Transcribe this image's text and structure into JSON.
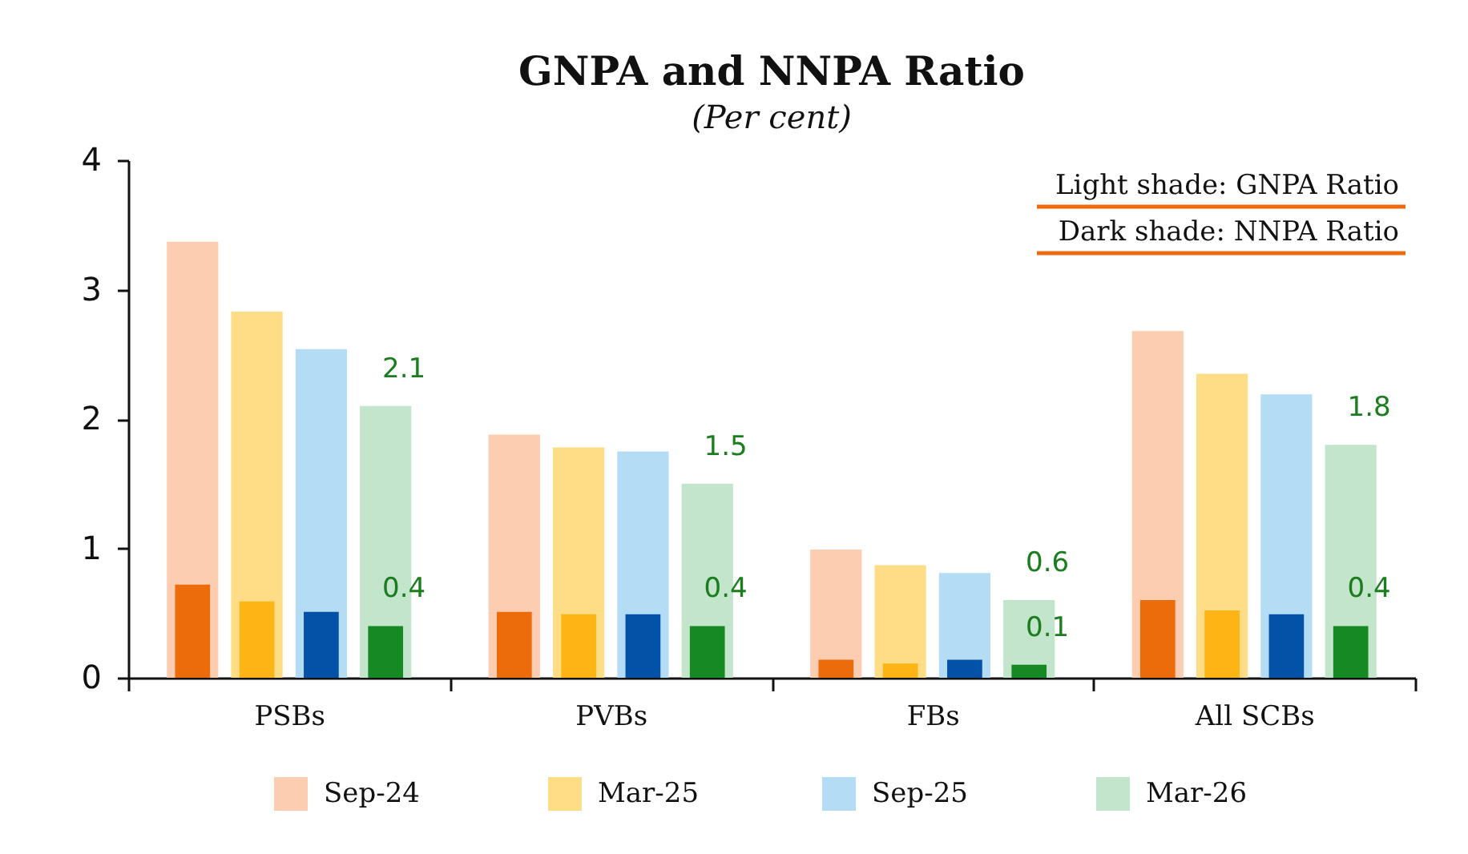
{
  "chart_data": {
    "type": "bar",
    "title": "GNPA and NNPA Ratio",
    "subtitle": "(Per cent)",
    "categories": [
      "PSBs",
      "PVBs",
      "FBs",
      "All SCBs"
    ],
    "series": [
      {
        "name": "Sep-24",
        "color": "#fccdb0",
        "values": [
          3.37,
          1.88,
          0.99,
          2.68
        ]
      },
      {
        "name": "Mar-25",
        "color": "#fedd86",
        "values": [
          2.83,
          1.78,
          0.87,
          2.35
        ]
      },
      {
        "name": "Sep-25",
        "color": "#b5dcf5",
        "values": [
          2.54,
          1.75,
          0.81,
          2.19
        ]
      },
      {
        "name": "Mar-26",
        "color": "#c3e5cc",
        "values": [
          2.1,
          1.5,
          0.6,
          1.8
        ],
        "value_labels": [
          "2.1",
          "1.5",
          "0.6",
          "1.8"
        ]
      },
      {
        "color": "#ec6c0c",
        "values": [
          0.72,
          0.51,
          0.14,
          0.6
        ]
      },
      {
        "color": "#fdb515",
        "values": [
          0.59,
          0.49,
          0.11,
          0.52
        ]
      },
      {
        "color": "#0452a8",
        "values": [
          0.51,
          0.49,
          0.14,
          0.49
        ]
      },
      {
        "color": "#168a22",
        "values": [
          0.4,
          0.4,
          0.1,
          0.4
        ],
        "value_labels": [
          "0.4",
          "0.4",
          "0.1",
          "0.4"
        ]
      }
    ],
    "ylim": [
      0,
      4
    ],
    "yticks": [
      0,
      1,
      2,
      3,
      4
    ],
    "legend": "bottom",
    "annotations": [
      "Light shade: GNPA Ratio",
      "Dark shade: NNPA Ratio"
    ]
  }
}
